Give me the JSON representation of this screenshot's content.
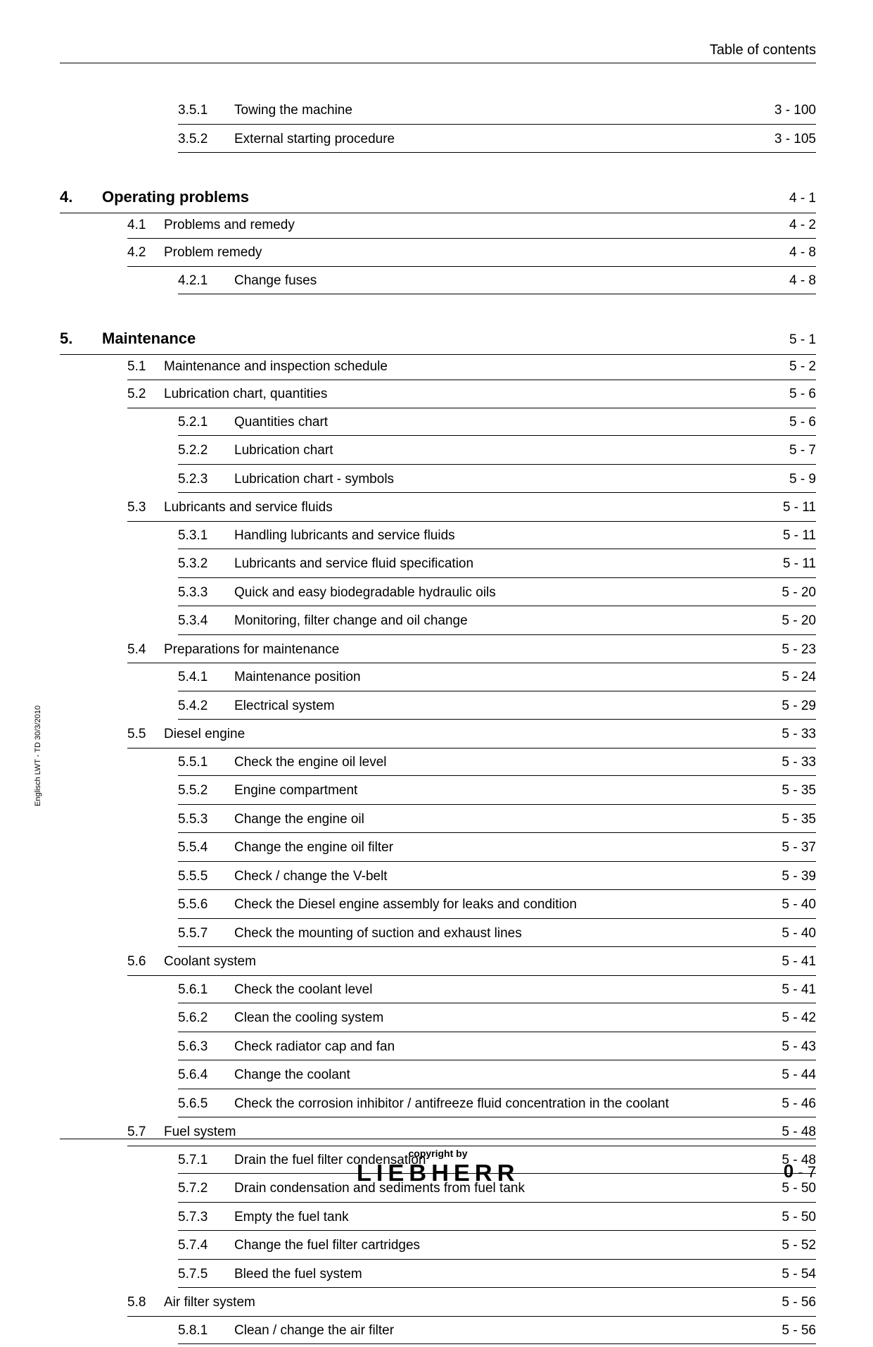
{
  "header": {
    "title": "Table of contents"
  },
  "side_label": "Englisch  LWT - TD 30/3/2010",
  "footer": {
    "copyright": "copyright by",
    "brand": "LIEBHERR",
    "page_chapter": "0",
    "page_sep": " - ",
    "page_num": "7"
  },
  "toc": [
    {
      "level": 3,
      "num": "3.5.1",
      "title": "Towing the machine",
      "page": "3 - 100"
    },
    {
      "level": 3,
      "num": "3.5.2",
      "title": "External starting procedure",
      "page": "3 - 105"
    },
    {
      "level": 1,
      "chapter": "4.",
      "title": "Operating problems",
      "page": "4 - 1"
    },
    {
      "level": 2,
      "num": "4.1",
      "title": "Problems and remedy",
      "page": "4 - 2"
    },
    {
      "level": 2,
      "num": "4.2",
      "title": "Problem remedy",
      "page": "4 - 8"
    },
    {
      "level": 3,
      "num": "4.2.1",
      "title": "Change fuses",
      "page": "4 - 8"
    },
    {
      "level": 1,
      "chapter": "5.",
      "title": "Maintenance",
      "page": "5 - 1"
    },
    {
      "level": 2,
      "num": "5.1",
      "title": "Maintenance and inspection schedule",
      "page": "5 - 2"
    },
    {
      "level": 2,
      "num": "5.2",
      "title": "Lubrication chart, quantities",
      "page": "5 - 6"
    },
    {
      "level": 3,
      "num": "5.2.1",
      "title": "Quantities chart",
      "page": "5 - 6"
    },
    {
      "level": 3,
      "num": "5.2.2",
      "title": "Lubrication chart",
      "page": "5 - 7"
    },
    {
      "level": 3,
      "num": "5.2.3",
      "title": "Lubrication chart - symbols",
      "page": "5 - 9"
    },
    {
      "level": 2,
      "num": "5.3",
      "title": "Lubricants and service fluids",
      "page": "5 - 11"
    },
    {
      "level": 3,
      "num": "5.3.1",
      "title": "Handling lubricants and service fluids",
      "page": "5 - 11"
    },
    {
      "level": 3,
      "num": "5.3.2",
      "title": "Lubricants and service fluid specification",
      "page": "5 - 11"
    },
    {
      "level": 3,
      "num": "5.3.3",
      "title": "Quick and easy biodegradable hydraulic oils",
      "page": "5 - 20"
    },
    {
      "level": 3,
      "num": "5.3.4",
      "title": "Monitoring, filter change and oil change",
      "page": "5 - 20"
    },
    {
      "level": 2,
      "num": "5.4",
      "title": "Preparations for maintenance",
      "page": "5 - 23"
    },
    {
      "level": 3,
      "num": "5.4.1",
      "title": "Maintenance position",
      "page": "5 - 24"
    },
    {
      "level": 3,
      "num": "5.4.2",
      "title": "Electrical system",
      "page": "5 - 29"
    },
    {
      "level": 2,
      "num": "5.5",
      "title": "Diesel engine",
      "page": "5 - 33"
    },
    {
      "level": 3,
      "num": "5.5.1",
      "title": "Check the engine oil level",
      "page": "5 - 33"
    },
    {
      "level": 3,
      "num": "5.5.2",
      "title": "Engine compartment",
      "page": "5 - 35"
    },
    {
      "level": 3,
      "num": "5.5.3",
      "title": "Change the engine oil",
      "page": "5 - 35"
    },
    {
      "level": 3,
      "num": "5.5.4",
      "title": "Change the engine oil filter",
      "page": "5 - 37"
    },
    {
      "level": 3,
      "num": "5.5.5",
      "title": "Check / change the V-belt",
      "page": "5 - 39"
    },
    {
      "level": 3,
      "num": "5.5.6",
      "title": "Check the Diesel engine assembly for leaks and condition",
      "page": "5 - 40"
    },
    {
      "level": 3,
      "num": "5.5.7",
      "title": "Check the mounting of suction and exhaust lines",
      "page": "5 - 40"
    },
    {
      "level": 2,
      "num": "5.6",
      "title": "Coolant system",
      "page": "5 - 41"
    },
    {
      "level": 3,
      "num": "5.6.1",
      "title": "Check the coolant level",
      "page": "5 - 41"
    },
    {
      "level": 3,
      "num": "5.6.2",
      "title": "Clean the cooling system",
      "page": "5 - 42"
    },
    {
      "level": 3,
      "num": "5.6.3",
      "title": "Check radiator cap and fan",
      "page": "5 - 43"
    },
    {
      "level": 3,
      "num": "5.6.4",
      "title": "Change the coolant",
      "page": "5 - 44"
    },
    {
      "level": 3,
      "num": "5.6.5",
      "title": "Check the corrosion inhibitor / antifreeze fluid concentration in the coolant",
      "page": "5 - 46"
    },
    {
      "level": 2,
      "num": "5.7",
      "title": "Fuel system",
      "page": "5 - 48"
    },
    {
      "level": 3,
      "num": "5.7.1",
      "title": "Drain the fuel filter condensation",
      "page": "5 - 48"
    },
    {
      "level": 3,
      "num": "5.7.2",
      "title": "Drain condensation and sediments from fuel tank",
      "page": "5 - 50"
    },
    {
      "level": 3,
      "num": "5.7.3",
      "title": "Empty the fuel tank",
      "page": "5 - 50"
    },
    {
      "level": 3,
      "num": "5.7.4",
      "title": "Change the fuel filter cartridges",
      "page": "5 - 52"
    },
    {
      "level": 3,
      "num": "5.7.5",
      "title": "Bleed the fuel system",
      "page": "5 - 54"
    },
    {
      "level": 2,
      "num": "5.8",
      "title": "Air filter system",
      "page": "5 - 56"
    },
    {
      "level": 3,
      "num": "5.8.1",
      "title": "Clean / change the air filter",
      "page": "5 - 56"
    }
  ]
}
